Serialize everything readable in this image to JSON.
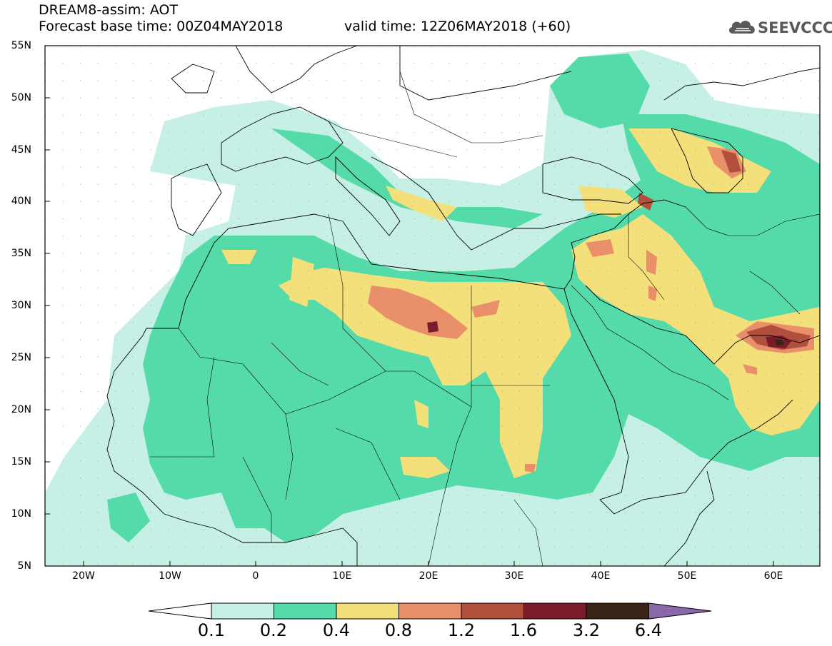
{
  "header": {
    "title_line1": "DREAM8-assim: AOT",
    "title_line2": "Forecast base time: 00Z04MAY2018",
    "valid_time": "valid time: 12Z06MAY2018 (+60)"
  },
  "logo": {
    "text": "SEEVCCC",
    "icon": "cloud-icon"
  },
  "map": {
    "variable": "AOT",
    "model": "DREAM8-assim",
    "lat_labels": [
      "55N",
      "50N",
      "45N",
      "40N",
      "35N",
      "30N",
      "25N",
      "20N",
      "15N",
      "10N",
      "5N"
    ],
    "lon_labels": [
      "20W",
      "10W",
      "0",
      "10E",
      "20E",
      "30E",
      "40E",
      "50E",
      "60E"
    ],
    "lon_range": [
      -25,
      65
    ],
    "lat_range": [
      5,
      55
    ],
    "features": [
      {
        "name": "max-aot-libya",
        "lon": 20,
        "lat": 28,
        "level": "1.6-3.2"
      },
      {
        "name": "max-aot-iran-coast",
        "lon": 60,
        "lat": 26,
        "level": "3.2-6.4"
      },
      {
        "name": "high-aot-central-sahara",
        "lon": 19,
        "lat": 29,
        "level": "0.8-1.2"
      },
      {
        "name": "high-aot-caspian",
        "lon": 51,
        "lat": 44,
        "level": "0.8-1.2"
      }
    ]
  },
  "colorbar": {
    "levels": [
      "0.1",
      "0.2",
      "0.4",
      "0.8",
      "1.2",
      "1.6",
      "3.2",
      "6.4"
    ],
    "colors": [
      "#ffffff",
      "#c6f0e6",
      "#55dba9",
      "#f4e07a",
      "#e9906a",
      "#b04f3c",
      "#7a1a2a",
      "#3a2418",
      "#8a67a8"
    ]
  }
}
